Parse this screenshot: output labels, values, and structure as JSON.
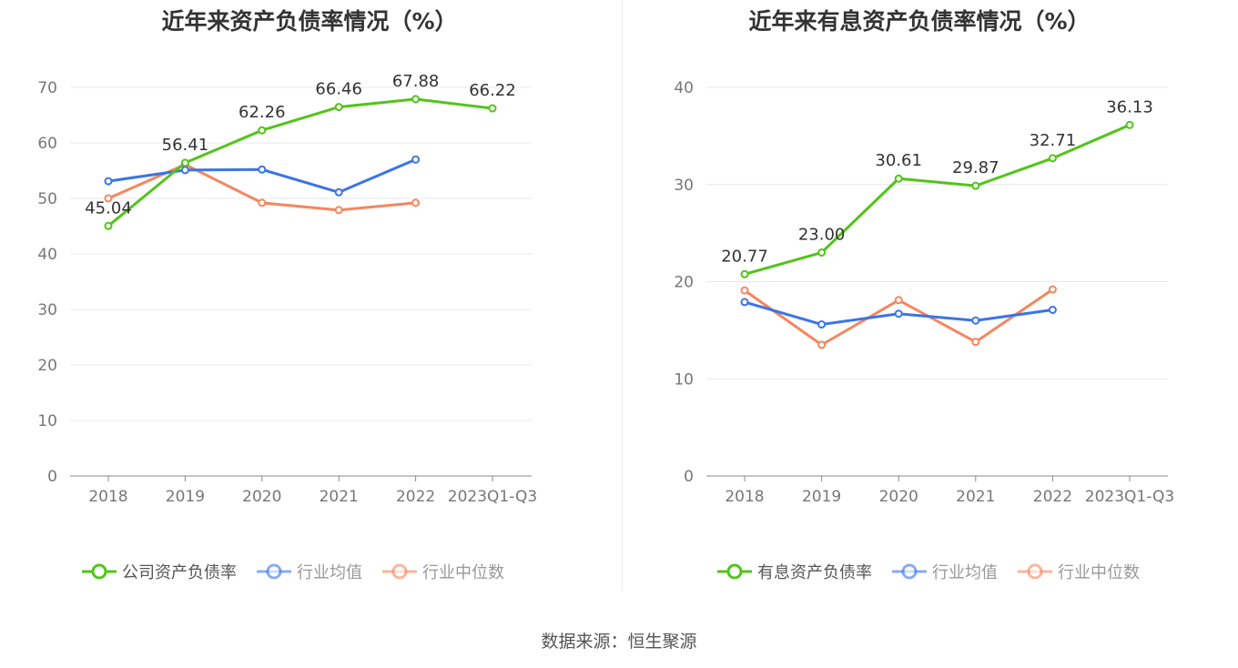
{
  "chart_data": [
    {
      "type": "line",
      "title": "近年来资产负债率情况（%）",
      "categories": [
        "2018",
        "2019",
        "2020",
        "2021",
        "2022",
        "2023Q1-Q3"
      ],
      "ylim": [
        0,
        70
      ],
      "yticks": [
        0,
        10,
        20,
        30,
        40,
        50,
        60,
        70
      ],
      "series": [
        {
          "name": "公司资产负债率",
          "color": "#52c41a",
          "values": [
            45.04,
            56.41,
            62.26,
            66.46,
            67.88,
            66.22
          ],
          "labels": [
            "45.04",
            "56.41",
            "62.26",
            "66.46",
            "67.88",
            "66.22"
          ]
        },
        {
          "name": "行业均值",
          "color": "#3b74e8",
          "values": [
            53.1,
            55.1,
            55.2,
            51.1,
            57.0,
            null
          ]
        },
        {
          "name": "行业中位数",
          "color": "#f5865e",
          "values": [
            50.0,
            56.1,
            49.2,
            47.9,
            49.2,
            null
          ]
        }
      ]
    },
    {
      "type": "line",
      "title": "近年来有息资产负债率情况（%）",
      "categories": [
        "2018",
        "2019",
        "2020",
        "2021",
        "2022",
        "2023Q1-Q3"
      ],
      "ylim": [
        0,
        40
      ],
      "yticks": [
        0,
        10,
        20,
        30,
        40
      ],
      "series": [
        {
          "name": "有息资产负债率",
          "color": "#52c41a",
          "values": [
            20.77,
            23.0,
            30.61,
            29.87,
            32.71,
            36.13
          ],
          "labels": [
            "20.77",
            "23.00",
            "30.61",
            "29.87",
            "32.71",
            "36.13"
          ]
        },
        {
          "name": "行业均值",
          "color": "#3b74e8",
          "values": [
            17.9,
            15.6,
            16.7,
            16.0,
            17.1,
            null
          ]
        },
        {
          "name": "行业中位数",
          "color": "#f5865e",
          "values": [
            19.1,
            13.5,
            18.1,
            13.8,
            19.2,
            null
          ]
        }
      ]
    }
  ],
  "source": "数据来源：恒生聚源"
}
